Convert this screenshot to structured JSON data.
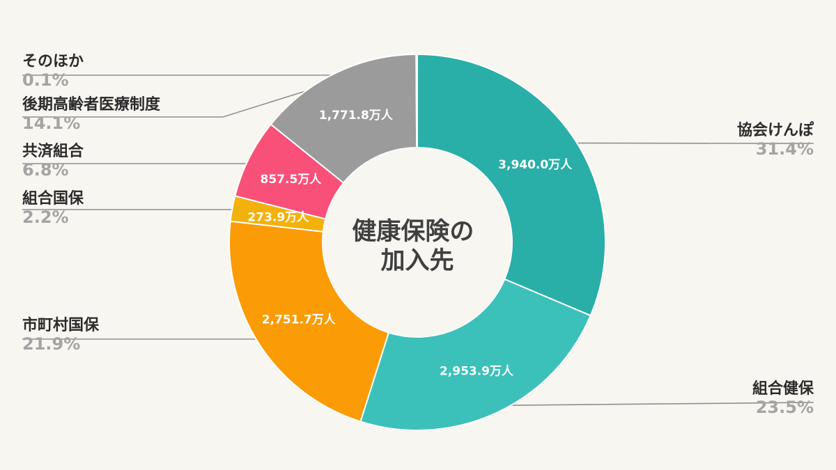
{
  "chart_data": {
    "type": "pie",
    "center_title_lines": [
      "健康保険の",
      "加入先"
    ],
    "unit_suffix": "万人",
    "slices": [
      {
        "name": "協会けんぽ",
        "value": 3940.0,
        "value_label": "3,940.0万人",
        "percent": "31.4%",
        "color": "#2aaea8"
      },
      {
        "name": "組合健保",
        "value": 2953.9,
        "value_label": "2,953.9万人",
        "percent": "23.5%",
        "color": "#3cc0ba"
      },
      {
        "name": "市町村国保",
        "value": 2751.7,
        "value_label": "2,751.7万人",
        "percent": "21.9%",
        "color": "#fb9b05"
      },
      {
        "name": "組合国保",
        "value": 273.9,
        "value_label": "273.9万人",
        "percent": "2.2%",
        "color": "#f3b10c"
      },
      {
        "name": "共済組合",
        "value": 857.5,
        "value_label": "857.5万人",
        "percent": "6.8%",
        "color": "#f9507a"
      },
      {
        "name": "後期高齢者医療制度",
        "value": 1771.8,
        "value_label": "1,771.8万人",
        "percent": "14.1%",
        "color": "#9b9b9b"
      },
      {
        "name": "そのほか",
        "value": 12.5,
        "value_label": "",
        "percent": "0.1%",
        "color": "#f3b10c"
      }
    ],
    "legend_placement": "outside, leader lines"
  }
}
